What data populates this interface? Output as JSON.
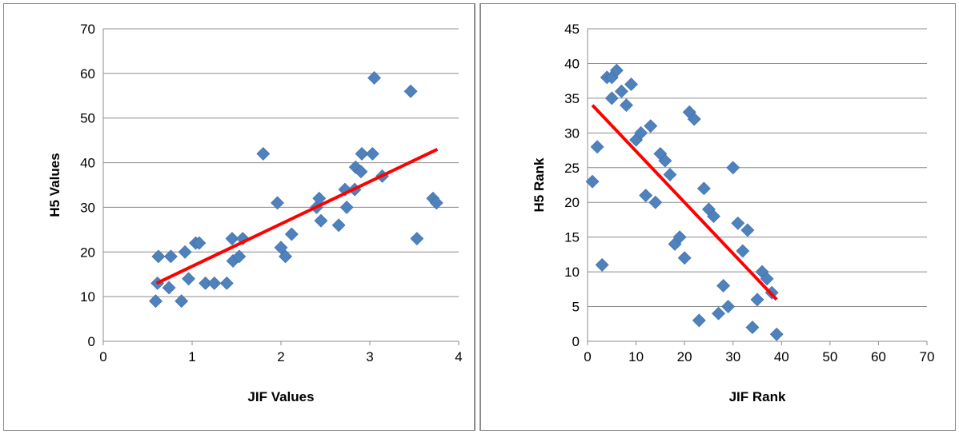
{
  "chart_data": [
    {
      "type": "scatter",
      "xlabel": "JIF Values",
      "ylabel": "H5 Values",
      "xlim": [
        0,
        4
      ],
      "ylim": [
        0,
        70
      ],
      "xticks": [
        0,
        1,
        2,
        3,
        4
      ],
      "yticks": [
        0,
        10,
        20,
        30,
        40,
        50,
        60,
        70
      ],
      "grid": "horizontal",
      "point_color": "#4f81bd",
      "trend_color": "#ff0000",
      "points": [
        [
          0.59,
          9
        ],
        [
          0.61,
          13
        ],
        [
          0.62,
          19
        ],
        [
          0.74,
          12
        ],
        [
          0.76,
          19
        ],
        [
          0.88,
          9
        ],
        [
          0.92,
          20
        ],
        [
          0.96,
          14
        ],
        [
          1.04,
          22
        ],
        [
          1.08,
          22
        ],
        [
          1.15,
          13
        ],
        [
          1.25,
          13
        ],
        [
          1.39,
          13
        ],
        [
          1.45,
          23
        ],
        [
          1.46,
          18
        ],
        [
          1.53,
          19
        ],
        [
          1.57,
          23
        ],
        [
          1.8,
          42
        ],
        [
          1.96,
          31
        ],
        [
          2.0,
          21
        ],
        [
          2.05,
          19
        ],
        [
          2.12,
          24
        ],
        [
          2.4,
          30
        ],
        [
          2.43,
          32
        ],
        [
          2.45,
          27
        ],
        [
          2.65,
          26
        ],
        [
          2.72,
          34
        ],
        [
          2.74,
          30
        ],
        [
          2.83,
          34
        ],
        [
          2.84,
          39
        ],
        [
          2.9,
          38
        ],
        [
          2.91,
          42
        ],
        [
          3.03,
          42
        ],
        [
          3.05,
          59
        ],
        [
          3.14,
          37
        ],
        [
          3.46,
          56
        ],
        [
          3.53,
          23
        ],
        [
          3.71,
          32
        ],
        [
          3.75,
          31
        ]
      ],
      "trendline": {
        "x": [
          0.6,
          3.76
        ],
        "y": [
          13,
          43
        ]
      }
    },
    {
      "type": "scatter",
      "xlabel": "JIF Rank",
      "ylabel": "H5 Rank",
      "xlim": [
        0,
        70
      ],
      "ylim": [
        0,
        45
      ],
      "xticks": [
        0,
        10,
        20,
        30,
        40,
        50,
        60,
        70
      ],
      "yticks": [
        0,
        5,
        10,
        15,
        20,
        25,
        30,
        35,
        40,
        45
      ],
      "grid": "horizontal",
      "point_color": "#4f81bd",
      "trend_color": "#ff0000",
      "points": [
        [
          1,
          23
        ],
        [
          2,
          28
        ],
        [
          3,
          11
        ],
        [
          4,
          38
        ],
        [
          5,
          35
        ],
        [
          5,
          38
        ],
        [
          6,
          39
        ],
        [
          7,
          36
        ],
        [
          8,
          34
        ],
        [
          9,
          37
        ],
        [
          10,
          29
        ],
        [
          11,
          30
        ],
        [
          12,
          21
        ],
        [
          13,
          31
        ],
        [
          14,
          20
        ],
        [
          15,
          27
        ],
        [
          16,
          26
        ],
        [
          17,
          24
        ],
        [
          18,
          14
        ],
        [
          19,
          15
        ],
        [
          20,
          12
        ],
        [
          21,
          33
        ],
        [
          22,
          32
        ],
        [
          23,
          3
        ],
        [
          24,
          22
        ],
        [
          25,
          19
        ],
        [
          26,
          18
        ],
        [
          27,
          4
        ],
        [
          28,
          8
        ],
        [
          29,
          5
        ],
        [
          30,
          25
        ],
        [
          31,
          17
        ],
        [
          32,
          13
        ],
        [
          33,
          16
        ],
        [
          34,
          2
        ],
        [
          35,
          6
        ],
        [
          36,
          10
        ],
        [
          37,
          9
        ],
        [
          38,
          7
        ],
        [
          39,
          1
        ]
      ],
      "trendline": {
        "x": [
          1,
          39
        ],
        "y": [
          34,
          6
        ]
      }
    }
  ]
}
